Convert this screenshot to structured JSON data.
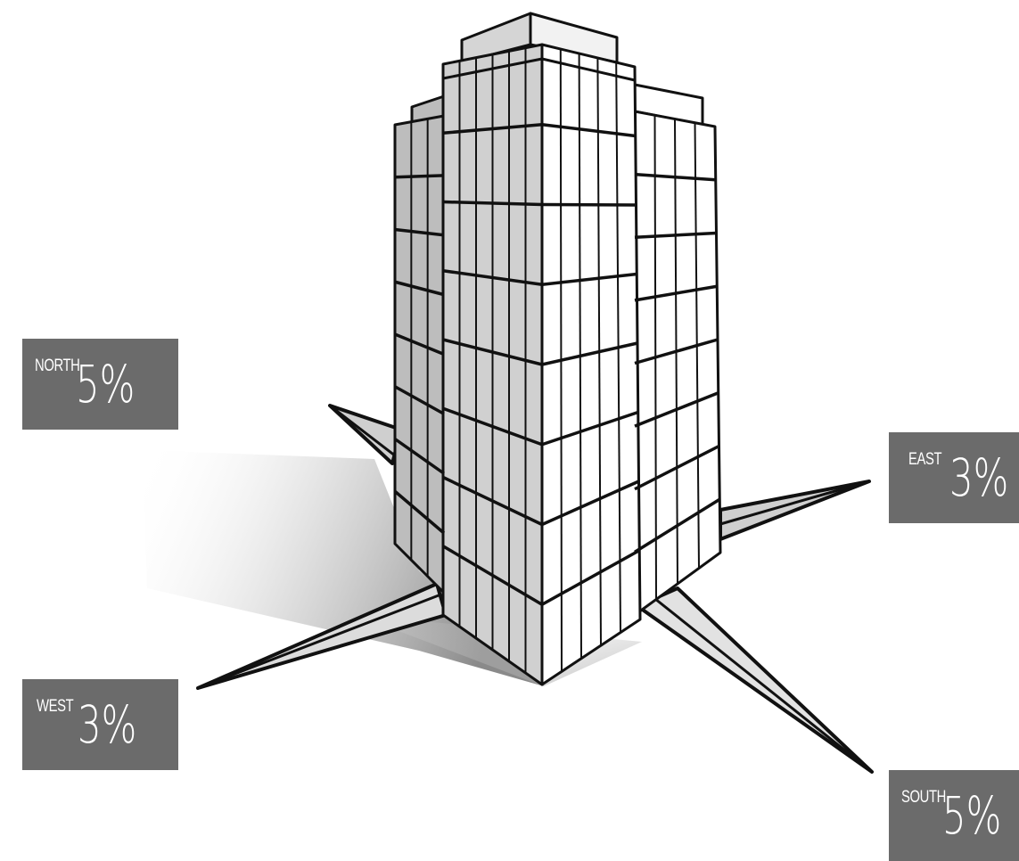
{
  "labels": {
    "north": {
      "direction": "NORTH",
      "value": "5%"
    },
    "east": {
      "direction": "EAST",
      "value": "3%"
    },
    "west": {
      "direction": "WEST",
      "value": "3%"
    },
    "south": {
      "direction": "SOUTH",
      "value": "5%"
    }
  },
  "colors": {
    "badge": "#6b6b6b",
    "outline": "#111111",
    "shade": "#c4c4c4",
    "light_face": "#ececec"
  }
}
